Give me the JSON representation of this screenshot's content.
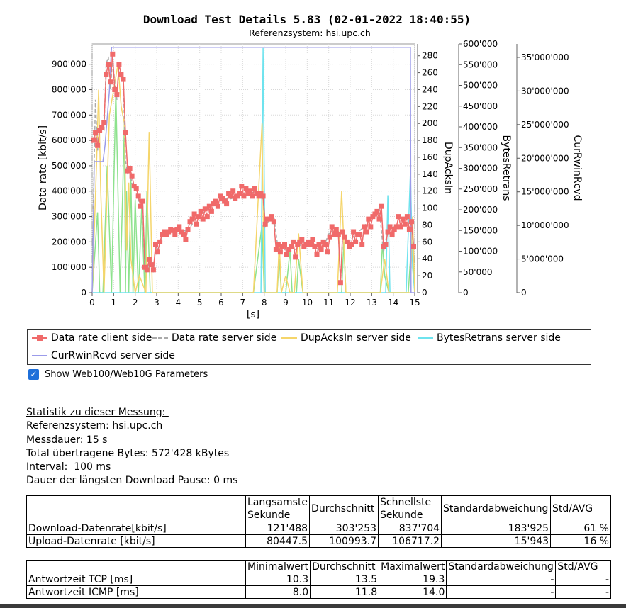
{
  "chart_data": {
    "type": "line",
    "title": "Download Test Details 5.83 (02-01-2022 18:40:55)",
    "subtitle": "Referenzsystem: hsi.upc.ch",
    "xlabel": "[s]",
    "ylabel": "Data rate [kbit/s]",
    "xlim": [
      0,
      15
    ],
    "ylim": [
      0,
      980000
    ],
    "x_ticks": [
      "0",
      "1",
      "2",
      "3",
      "4",
      "5",
      "6",
      "7",
      "8",
      "9",
      "10",
      "11",
      "12",
      "13",
      "14",
      "15"
    ],
    "y_ticks": [
      "0",
      "100'000",
      "200'000",
      "300'000",
      "400'000",
      "500'000",
      "600'000",
      "700'000",
      "800'000",
      "900'000"
    ],
    "y2_label": "DupAcksIn",
    "y2_lim": [
      0,
      294
    ],
    "y2_ticks": [
      "0",
      "20",
      "40",
      "60",
      "80",
      "100",
      "120",
      "140",
      "160",
      "180",
      "200",
      "220",
      "240",
      "260",
      "280"
    ],
    "y3_label": "BytesRetrans",
    "y3_lim": [
      0,
      600000
    ],
    "y3_ticks": [
      "0",
      "50'000",
      "100'000",
      "150'000",
      "200'000",
      "250'000",
      "300'000",
      "350'000",
      "400'000",
      "450'000",
      "500'000",
      "550'000",
      "600'000"
    ],
    "y4_label": "CurRwinRcvd",
    "y4_lim": [
      0,
      37000000
    ],
    "y4_ticks": [
      "0",
      "5'000'000",
      "10'000'000",
      "15'000'000",
      "20'000'000",
      "25'000'000",
      "30'000'000",
      "35'000'000"
    ],
    "grid": true,
    "legend_position": "bottom",
    "series": [
      {
        "name": "Data rate client side",
        "axis": "y",
        "color": "#f06a6a",
        "x": [
          0.05,
          0.15,
          0.25,
          0.35,
          0.45,
          0.55,
          0.65,
          0.75,
          0.85,
          0.95,
          1.05,
          1.15,
          1.25,
          1.35,
          1.45,
          1.55,
          1.65,
          1.75,
          1.85,
          1.95,
          2.05,
          2.15,
          2.25,
          2.35,
          2.45,
          2.55,
          2.65,
          2.75,
          2.85,
          2.95,
          3.05,
          3.15,
          3.25,
          3.35,
          3.45,
          3.55,
          3.65,
          3.75,
          3.85,
          3.95,
          4.05,
          4.15,
          4.25,
          4.35,
          4.45,
          4.55,
          4.65,
          4.75,
          4.85,
          4.95,
          5.05,
          5.15,
          5.25,
          5.35,
          5.45,
          5.55,
          5.65,
          5.75,
          5.85,
          5.95,
          6.05,
          6.15,
          6.25,
          6.35,
          6.45,
          6.55,
          6.65,
          6.75,
          6.85,
          6.95,
          7.05,
          7.15,
          7.25,
          7.35,
          7.45,
          7.55,
          7.65,
          7.75,
          7.85,
          7.95,
          8.05,
          8.15,
          8.25,
          8.35,
          8.45,
          8.55,
          8.65,
          8.75,
          8.85,
          8.95,
          9.05,
          9.15,
          9.25,
          9.35,
          9.45,
          9.55,
          9.65,
          9.75,
          9.85,
          9.95,
          10.05,
          10.15,
          10.25,
          10.35,
          10.45,
          10.55,
          10.65,
          10.75,
          10.85,
          10.95,
          11.05,
          11.15,
          11.25,
          11.35,
          11.45,
          11.55,
          11.65,
          11.75,
          11.85,
          11.95,
          12.05,
          12.15,
          12.25,
          12.35,
          12.45,
          12.55,
          12.65,
          12.75,
          12.85,
          12.95,
          13.05,
          13.15,
          13.25,
          13.35,
          13.45,
          13.55,
          13.65,
          13.75,
          13.85,
          13.95,
          14.05,
          14.15,
          14.25,
          14.35,
          14.45,
          14.55,
          14.65,
          14.75,
          14.85,
          14.95
        ],
        "values": [
          600000,
          630000,
          580000,
          640000,
          650000,
          670000,
          860000,
          900000,
          830000,
          940000,
          800000,
          780000,
          900000,
          860000,
          840000,
          630000,
          480000,
          490000,
          460000,
          420000,
          410000,
          380000,
          340000,
          360000,
          100000,
          90000,
          130000,
          110000,
          90000,
          190000,
          160000,
          200000,
          230000,
          240000,
          230000,
          240000,
          250000,
          245000,
          230000,
          250000,
          260000,
          240000,
          230000,
          210000,
          250000,
          280000,
          290000,
          310000,
          270000,
          300000,
          320000,
          290000,
          330000,
          300000,
          340000,
          320000,
          350000,
          360000,
          340000,
          380000,
          370000,
          360000,
          350000,
          390000,
          380000,
          400000,
          370000,
          380000,
          390000,
          420000,
          380000,
          410000,
          390000,
          400000,
          380000,
          410000,
          390000,
          380000,
          390000,
          380000,
          270000,
          290000,
          290000,
          300000,
          280000,
          170000,
          190000,
          160000,
          180000,
          190000,
          150000,
          170000,
          180000,
          200000,
          140000,
          190000,
          200000,
          210000,
          180000,
          190000,
          200000,
          190000,
          210000,
          180000,
          150000,
          190000,
          170000,
          200000,
          190000,
          160000,
          220000,
          260000,
          230000,
          250000,
          230000,
          40000,
          240000,
          220000,
          200000,
          180000,
          190000,
          240000,
          200000,
          230000,
          230000,
          190000,
          260000,
          240000,
          290000,
          260000,
          300000,
          310000,
          320000,
          290000,
          340000,
          180000,
          190000,
          240000,
          260000,
          230000,
          250000,
          260000,
          300000,
          260000,
          290000,
          270000,
          300000,
          250000,
          280000,
          180000
        ]
      },
      {
        "name": "Data rate server side",
        "axis": "y",
        "color": "#aaaaaa",
        "x": [
          0.05,
          0.15,
          0.25,
          0.35,
          0.45,
          0.55,
          0.65,
          0.75,
          0.85,
          0.95,
          1.05,
          1.15,
          1.25,
          1.35,
          1.45,
          1.55,
          1.65,
          1.75,
          1.85,
          1.95,
          2.05,
          2.15,
          2.25,
          2.35,
          2.45,
          2.55,
          2.65,
          2.75,
          2.85,
          2.95,
          3.05,
          3.25,
          3.45,
          3.65,
          3.85,
          4.05,
          4.45,
          4.85,
          5.25,
          5.65,
          6.05,
          6.45,
          6.85,
          7.25,
          7.65,
          7.95,
          8.05,
          8.25,
          8.45,
          8.65,
          8.85,
          9.05,
          9.45,
          9.85,
          10.25,
          10.65,
          11.05,
          11.45,
          11.55,
          11.65,
          11.85,
          12.25,
          12.65,
          13.05,
          13.35,
          13.55,
          13.75,
          14.05,
          14.45,
          14.85,
          14.95
        ],
        "values": [
          330000,
          760000,
          560000,
          660000,
          640000,
          640000,
          900000,
          930000,
          800000,
          920000,
          830000,
          760000,
          900000,
          840000,
          830000,
          520000,
          470000,
          480000,
          430000,
          410000,
          400000,
          370000,
          330000,
          350000,
          90000,
          80000,
          120000,
          120000,
          80000,
          180000,
          170000,
          220000,
          240000,
          250000,
          240000,
          250000,
          240000,
          300000,
          320000,
          350000,
          370000,
          370000,
          380000,
          400000,
          390000,
          370000,
          260000,
          290000,
          300000,
          170000,
          160000,
          180000,
          170000,
          200000,
          190000,
          160000,
          240000,
          240000,
          30000,
          230000,
          190000,
          230000,
          260000,
          310000,
          330000,
          160000,
          250000,
          260000,
          270000,
          280000,
          170000
        ]
      },
      {
        "name": "DupAcksIn server side",
        "axis": "y2",
        "color": "#f5d56a",
        "x": [
          0,
          0.2,
          0.3,
          0.4,
          0.55,
          0.8,
          1.0,
          1.2,
          1.35,
          1.5,
          1.6,
          1.7,
          1.8,
          2.0,
          2.2,
          2.5,
          2.65,
          2.8,
          3.0,
          7.5,
          7.9,
          8.0,
          8.2,
          8.6,
          8.7,
          8.8,
          9.0,
          9.2,
          9.4,
          9.6,
          9.8,
          10.0,
          11.4,
          11.6,
          11.8,
          12.0,
          13.4,
          13.6,
          13.8,
          14.8,
          14.9,
          15.0
        ],
        "values": [
          0,
          150,
          240,
          120,
          0,
          210,
          240,
          270,
          220,
          200,
          50,
          130,
          40,
          0,
          20,
          0,
          190,
          0,
          0,
          0,
          200,
          0,
          0,
          0,
          60,
          0,
          20,
          0,
          0,
          70,
          0,
          0,
          0,
          120,
          0,
          0,
          0,
          40,
          0,
          0,
          90,
          0
        ]
      },
      {
        "name": "BytesRetrans server side",
        "axis": "y3",
        "color": "#6ee3ee",
        "x": [
          0,
          7.85,
          7.95,
          8.05,
          8.2,
          13.65,
          13.75,
          13.85,
          14.6,
          14.8,
          14.9,
          15.0
        ],
        "values": [
          0,
          0,
          590000,
          0,
          0,
          0,
          235000,
          0,
          0,
          290000,
          60000,
          0
        ]
      },
      {
        "name": "CurRwinRcvd server side",
        "axis": "y4",
        "color": "#9b9bea",
        "x": [
          0,
          0.1,
          0.3,
          0.5,
          0.6,
          0.8,
          0.9,
          1.0,
          1.2,
          14.8,
          14.83,
          15.0
        ],
        "values": [
          0,
          19500000,
          19500000,
          19500000,
          22000000,
          30000000,
          36500000,
          36500000,
          36500000,
          36500000,
          0,
          0
        ]
      },
      {
        "name": "_green",
        "axis": "y2",
        "color": "#8de28d",
        "x": [
          0,
          0.25,
          0.35,
          0.5,
          0.7,
          0.9,
          1.1,
          1.3,
          1.5,
          1.55,
          1.6,
          1.7,
          1.8,
          1.9,
          2.0,
          2.15,
          2.3,
          2.45,
          2.55,
          2.7,
          7.5,
          7.9,
          8.0,
          8.15,
          8.3,
          8.6,
          8.7,
          8.8,
          9.0,
          9.2,
          9.3,
          9.5,
          9.6,
          9.8,
          11.6,
          11.7,
          11.8,
          12.0,
          13.4,
          13.5,
          13.6,
          13.8,
          14.7,
          14.85,
          15.0
        ],
        "values": [
          0,
          95,
          0,
          0,
          150,
          0,
          240,
          0,
          200,
          0,
          120,
          0,
          135,
          0,
          110,
          0,
          100,
          0,
          120,
          0,
          0,
          80,
          0,
          0,
          0,
          0,
          40,
          0,
          0,
          50,
          0,
          0,
          40,
          0,
          0,
          60,
          0,
          0,
          0,
          60,
          20,
          0,
          0,
          60,
          0
        ]
      }
    ]
  },
  "legend": {
    "items": [
      {
        "label": "Data rate client side"
      },
      {
        "label": "Data rate server side"
      },
      {
        "label": "DupAcksIn server side"
      },
      {
        "label": "BytesRetrans server side"
      },
      {
        "label": "CurRwinRcvd server side"
      }
    ]
  },
  "checkbox": {
    "label": "Show Web100/Web10G Parameters",
    "checked": true
  },
  "stats": {
    "heading": "Statistik zu dieser Messung: ",
    "lines": [
      "Referenzsystem: hsi.upc.ch",
      "Messdauer: 15 s",
      "Total übertragene Bytes: 572'428 kBytes",
      "Interval:  100 ms",
      "Dauer der längsten Download Pause: 0 ms"
    ]
  },
  "table1": {
    "headers": [
      "",
      "Langsamste Sekunde",
      "Durchschnitt",
      "Schnellste Sekunde",
      "Standardabweichung",
      "Std/AVG"
    ],
    "rows": [
      [
        "Download-Datenrate[kbit/s]",
        "121'488",
        "303'253",
        "837'704",
        "183'925",
        "61 %"
      ],
      [
        "Upload-Datenrate [kbit/s]",
        "80447.5",
        "100993.7",
        "106717.2",
        "15'943",
        "16 %"
      ]
    ]
  },
  "table2": {
    "headers": [
      "",
      "Minimalwert",
      "Durchschnitt",
      "Maximalwert",
      "Standardabweichung",
      "Std/AVG"
    ],
    "rows": [
      [
        "Antwortzeit TCP [ms]",
        "10.3",
        "13.5",
        "19.3",
        "-",
        "-"
      ],
      [
        "Antwortzeit ICMP [ms]",
        "8.0",
        "11.8",
        "14.0",
        "-",
        "-"
      ]
    ]
  }
}
